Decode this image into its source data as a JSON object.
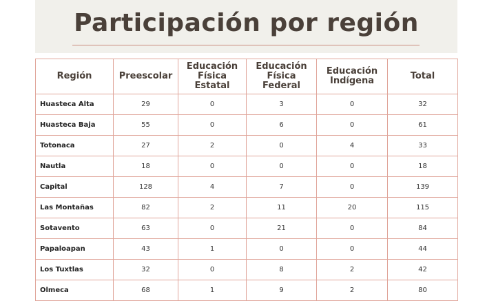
{
  "title": "Participación por región",
  "columns": [
    "Región",
    "Preescolar",
    "Educación Física Estatal",
    "Educación Física Federal",
    "Educación Indígena",
    "Total"
  ],
  "rows": [
    {
      "region": "Huasteca Alta",
      "values": [
        "29",
        "0",
        "3",
        "0",
        "32"
      ]
    },
    {
      "region": "Huasteca Baja",
      "values": [
        "55",
        "0",
        "6",
        "0",
        "61"
      ]
    },
    {
      "region": "Totonaca",
      "values": [
        "27",
        "2",
        "0",
        "4",
        "33"
      ]
    },
    {
      "region": "Nautla",
      "values": [
        "18",
        "0",
        "0",
        "0",
        "18"
      ]
    },
    {
      "region": "Capital",
      "values": [
        "128",
        "4",
        "7",
        "0",
        "139"
      ]
    },
    {
      "region": "Las Montañas",
      "values": [
        "82",
        "2",
        "11",
        "20",
        "115"
      ]
    },
    {
      "region": "Sotavento",
      "values": [
        "63",
        "0",
        "21",
        "0",
        "84"
      ]
    },
    {
      "region": "Papaloapan",
      "values": [
        "43",
        "1",
        "0",
        "0",
        "44"
      ]
    },
    {
      "region": "Los Tuxtlas",
      "values": [
        "32",
        "0",
        "8",
        "2",
        "42"
      ]
    },
    {
      "region": "Olmeca",
      "values": [
        "68",
        "1",
        "9",
        "2",
        "80"
      ]
    }
  ],
  "colors": {
    "title": "#4a4039",
    "banner": "#f1f0eb",
    "rule": "#c98a7c",
    "grid": "#e0a59a"
  }
}
